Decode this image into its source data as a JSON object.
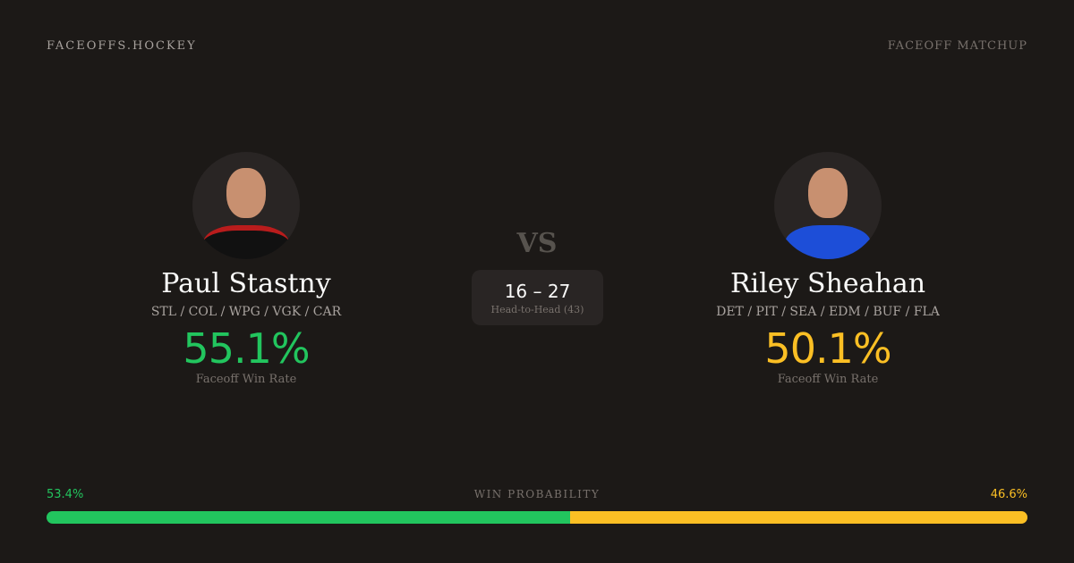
{
  "header": {
    "brand": "FACEOFFS.HOCKEY",
    "tag": "FACEOFF MATCHUP"
  },
  "colors": {
    "player1": "#22c55e",
    "player2": "#fbbf24",
    "background": "#1c1917"
  },
  "player1": {
    "name": "Paul Stastny",
    "teams": "STL / COL / WPG / VGK / CAR",
    "win_rate": "55.1%",
    "win_rate_label": "Faceoff Win Rate",
    "jersey_color": "#b91c1c"
  },
  "player2": {
    "name": "Riley Sheahan",
    "teams": "DET / PIT / SEA / EDM / BUF / FLA",
    "win_rate": "50.1%",
    "win_rate_label": "Faceoff Win Rate",
    "jersey_color": "#1d4ed8"
  },
  "matchup": {
    "vs": "VS",
    "score": "16 – 27",
    "label": "Head-to-Head (43)"
  },
  "probability": {
    "title": "WIN PROBABILITY",
    "p1_label": "53.4%",
    "p2_label": "46.6%",
    "p1": 53.4,
    "p2": 46.6
  }
}
